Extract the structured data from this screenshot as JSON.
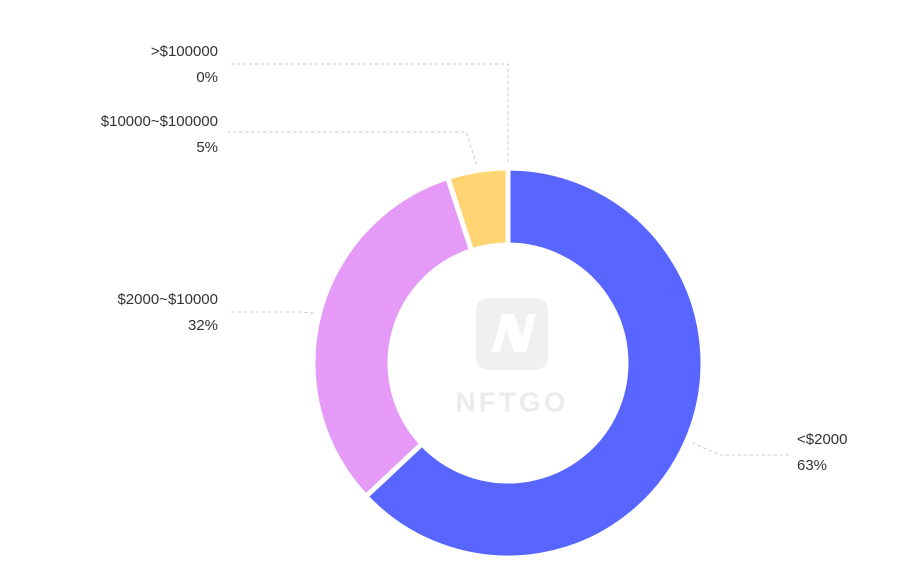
{
  "chart_data": {
    "type": "donut",
    "categories": [
      "<$2000",
      "$2000~$10000",
      "$10000~$100000",
      ">$100000"
    ],
    "values": [
      63,
      32,
      5,
      0
    ],
    "value_labels": [
      "63%",
      "32%",
      "5%",
      "0%"
    ],
    "colors": [
      "#5866ff",
      "#e59af8",
      "#ffd574",
      "#7fd3c2"
    ],
    "watermark": "NFTGO"
  }
}
